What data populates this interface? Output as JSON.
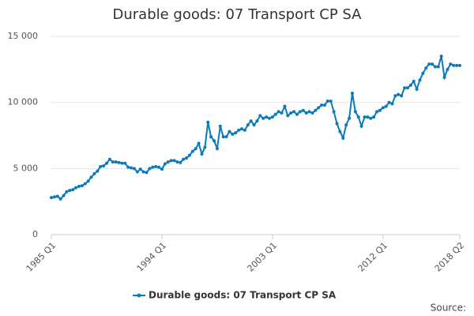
{
  "chart_data": {
    "type": "line",
    "title": "Durable goods: 07 Transport CP SA",
    "source": "Source:",
    "categories": [
      "1985 Q1",
      null,
      null,
      null,
      null,
      null,
      null,
      null,
      null,
      null,
      null,
      null,
      null,
      null,
      null,
      null,
      null,
      null,
      null,
      null,
      null,
      null,
      null,
      null,
      null,
      null,
      null,
      null,
      null,
      null,
      null,
      null,
      null,
      null,
      null,
      null,
      "1994 Q1",
      null,
      null,
      null,
      null,
      null,
      null,
      null,
      null,
      null,
      null,
      null,
      null,
      null,
      null,
      null,
      null,
      null,
      null,
      null,
      null,
      null,
      null,
      null,
      null,
      null,
      null,
      null,
      null,
      null,
      null,
      null,
      null,
      null,
      null,
      null,
      "2003 Q1",
      null,
      null,
      null,
      null,
      null,
      null,
      null,
      null,
      null,
      null,
      null,
      null,
      null,
      null,
      null,
      null,
      null,
      null,
      null,
      null,
      null,
      null,
      null,
      null,
      null,
      null,
      null,
      null,
      null,
      null,
      null,
      null,
      null,
      null,
      null,
      "2012 Q1",
      null,
      null,
      null,
      null,
      null,
      null,
      null,
      null,
      null,
      null,
      null,
      null,
      null,
      null,
      null,
      null,
      null,
      null,
      null,
      null,
      null,
      null,
      null,
      null,
      "2018 Q2"
    ],
    "series": [
      {
        "name": "Durable goods: 07 Transport CP SA",
        "color": "#0a7ab8",
        "values": [
          2800,
          2850,
          2900,
          2700,
          2950,
          3250,
          3350,
          3400,
          3550,
          3650,
          3700,
          3850,
          4050,
          4350,
          4600,
          4800,
          5150,
          5200,
          5400,
          5700,
          5500,
          5500,
          5450,
          5400,
          5400,
          5100,
          5050,
          5000,
          4750,
          4950,
          4750,
          4700,
          5000,
          5100,
          5150,
          5100,
          4950,
          5350,
          5500,
          5600,
          5600,
          5500,
          5450,
          5700,
          5800,
          6000,
          6300,
          6500,
          6900,
          6100,
          6600,
          8500,
          7400,
          7100,
          6500,
          8200,
          7400,
          7400,
          7800,
          7600,
          7700,
          7900,
          8000,
          7900,
          8300,
          8600,
          8300,
          8600,
          9000,
          8800,
          8900,
          8800,
          8900,
          9100,
          9300,
          9200,
          9700,
          9000,
          9200,
          9300,
          9100,
          9300,
          9400,
          9200,
          9300,
          9200,
          9400,
          9600,
          9800,
          9800,
          10100,
          10100,
          9300,
          8400,
          7800,
          7300,
          8300,
          8800,
          10700,
          9300,
          8900,
          8200,
          8900,
          8900,
          8800,
          8900,
          9300,
          9400,
          9600,
          9700,
          10000,
          9900,
          10500,
          10600,
          10500,
          11100,
          11100,
          11300,
          11600,
          11000,
          11700,
          12200,
          12600,
          12900,
          12900,
          12700,
          12700,
          13500,
          11900,
          12500,
          12900,
          12800,
          12800,
          12800
        ]
      }
    ],
    "ylim": [
      0,
      15000
    ],
    "yticks": [
      0,
      {
        "value": 5000,
        "label": "5 000"
      },
      {
        "value": 10000,
        "label": "10 000"
      },
      {
        "value": 15000,
        "label": "15 000"
      }
    ],
    "grid": true,
    "legend": "bottom"
  }
}
